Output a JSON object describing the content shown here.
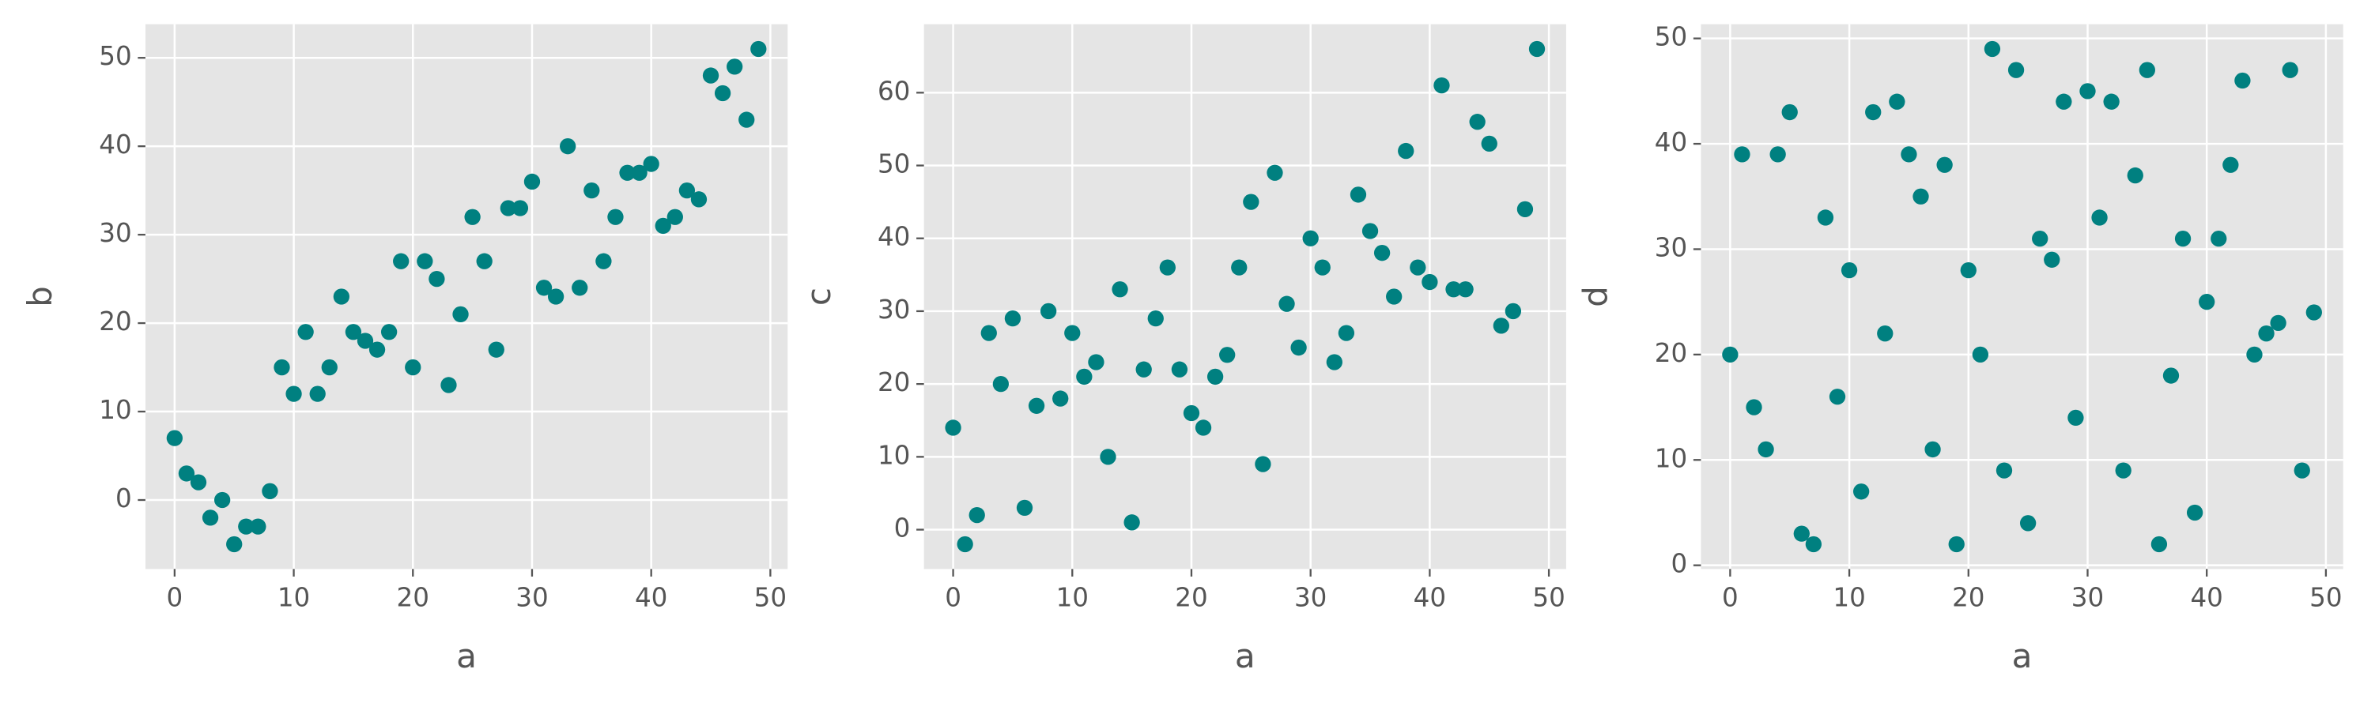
{
  "chart_data": [
    {
      "type": "scatter",
      "x_label": "a",
      "y_label": "b",
      "color": "#008080",
      "grid": true,
      "x": [
        0,
        1,
        2,
        3,
        4,
        5,
        6,
        7,
        8,
        9,
        10,
        11,
        12,
        13,
        14,
        15,
        16,
        17,
        18,
        19,
        20,
        21,
        22,
        23,
        24,
        25,
        26,
        27,
        28,
        29,
        30,
        31,
        32,
        33,
        34,
        35,
        36,
        37,
        38,
        39,
        40,
        41,
        42,
        43,
        44,
        45,
        46,
        47,
        48,
        49
      ],
      "values": [
        7,
        3,
        2,
        -2,
        0,
        -5,
        -3,
        -3,
        1,
        15,
        12,
        19,
        12,
        15,
        23,
        19,
        18,
        17,
        19,
        27,
        15,
        27,
        25,
        13,
        21,
        32,
        27,
        17,
        33,
        33,
        36,
        24,
        23,
        40,
        24,
        35,
        27,
        32,
        37,
        37,
        38,
        31,
        32,
        35,
        34,
        48,
        46,
        49,
        43,
        51
      ],
      "xlim": [
        -2.45,
        51.45
      ],
      "ylim": [
        -7.8,
        53.8
      ],
      "xticks": [
        0,
        10,
        20,
        30,
        40,
        50
      ],
      "yticks": [
        0,
        10,
        20,
        30,
        40,
        50
      ]
    },
    {
      "type": "scatter",
      "x_label": "a",
      "y_label": "c",
      "color": "#008080",
      "grid": true,
      "x": [
        0,
        1,
        2,
        3,
        4,
        5,
        6,
        7,
        8,
        9,
        10,
        11,
        12,
        13,
        14,
        15,
        16,
        17,
        18,
        19,
        20,
        21,
        22,
        23,
        24,
        25,
        26,
        27,
        28,
        29,
        30,
        31,
        32,
        33,
        34,
        35,
        36,
        37,
        38,
        39,
        40,
        41,
        42,
        43,
        44,
        45,
        46,
        47,
        48,
        49
      ],
      "values": [
        14,
        -2,
        2,
        27,
        20,
        29,
        3,
        17,
        30,
        18,
        27,
        21,
        23,
        10,
        33,
        1,
        22,
        29,
        36,
        22,
        16,
        14,
        21,
        24,
        36,
        45,
        9,
        49,
        31,
        25,
        40,
        36,
        23,
        27,
        46,
        41,
        38,
        32,
        52,
        36,
        34,
        61,
        33,
        33,
        56,
        53,
        28,
        30,
        44,
        66
      ],
      "xlim": [
        -2.45,
        51.45
      ],
      "ylim": [
        -5.4,
        69.4
      ],
      "xticks": [
        0,
        10,
        20,
        30,
        40,
        50
      ],
      "yticks": [
        0,
        10,
        20,
        30,
        40,
        50,
        60
      ]
    },
    {
      "type": "scatter",
      "x_label": "a",
      "y_label": "d",
      "color": "#008080",
      "grid": true,
      "x": [
        0,
        1,
        2,
        3,
        4,
        5,
        6,
        7,
        8,
        9,
        10,
        11,
        12,
        13,
        14,
        15,
        16,
        17,
        18,
        19,
        20,
        21,
        22,
        23,
        24,
        25,
        26,
        27,
        28,
        29,
        30,
        31,
        32,
        33,
        34,
        35,
        36,
        37,
        38,
        39,
        40,
        41,
        42,
        43,
        44,
        45,
        46,
        47,
        48,
        49
      ],
      "values": [
        20,
        39,
        15,
        11,
        39,
        43,
        3,
        2,
        33,
        16,
        28,
        7,
        43,
        22,
        44,
        39,
        35,
        11,
        38,
        2,
        28,
        20,
        49,
        9,
        47,
        4,
        31,
        29,
        44,
        14,
        45,
        33,
        44,
        9,
        37,
        47,
        2,
        18,
        31,
        5,
        25,
        31,
        38,
        46,
        20,
        22,
        23,
        47,
        9,
        24
      ],
      "xlim": [
        -2.45,
        51.45
      ],
      "ylim": [
        -0.35,
        51.35
      ],
      "xticks": [
        0,
        10,
        20,
        30,
        40,
        50
      ],
      "yticks": [
        0,
        10,
        20,
        30,
        40,
        50
      ]
    }
  ]
}
